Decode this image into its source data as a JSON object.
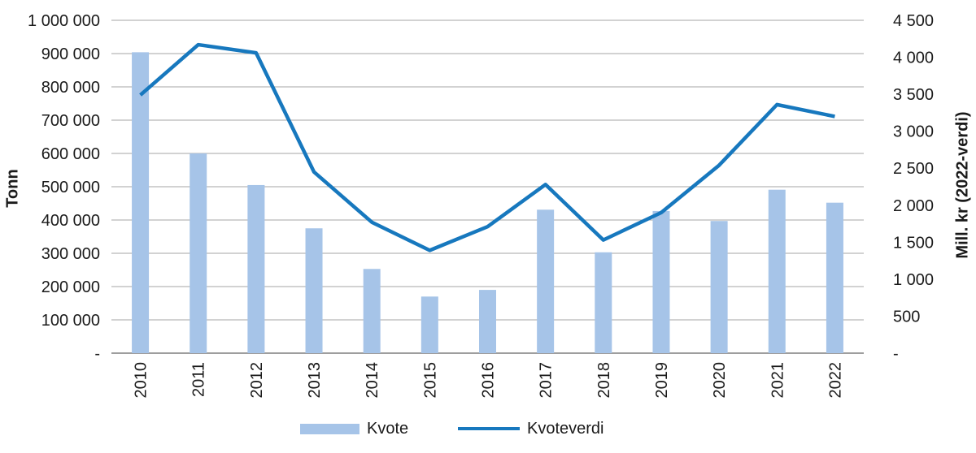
{
  "chart_data": {
    "type": "combo-bar-line",
    "title": "",
    "categories": [
      "2010",
      "2011",
      "2012",
      "2013",
      "2014",
      "2015",
      "2016",
      "2017",
      "2018",
      "2019",
      "2020",
      "2021",
      "2022"
    ],
    "series": [
      {
        "name": "Kvote",
        "type": "bar",
        "axis": "left",
        "color": "#A6C4E8",
        "values": [
          904000,
          600000,
          505000,
          375000,
          253000,
          170000,
          190000,
          431000,
          303000,
          427000,
          397000,
          491000,
          452000
        ]
      },
      {
        "name": "Kvoteverdi",
        "type": "line",
        "axis": "right",
        "color": "#1778BE",
        "values": [
          3490,
          4170,
          4060,
          2450,
          1770,
          1390,
          1710,
          2280,
          1530,
          1900,
          2540,
          3360,
          3200
        ]
      }
    ],
    "left_axis": {
      "label": "Tonn",
      "min": 0,
      "max": 1000000,
      "step": 100000,
      "tick_labels": [
        "-",
        "100 000",
        "200 000",
        "300 000",
        "400 000",
        "500 000",
        "600 000",
        "700 000",
        "800 000",
        "900 000",
        "1 000 000"
      ]
    },
    "right_axis": {
      "label": "Mill. kr (2022-verdi)",
      "min": 0,
      "max": 4500,
      "step": 500,
      "tick_labels": [
        "-",
        "500",
        "1 000",
        "1 500",
        "2 000",
        "2 500",
        "3 000",
        "3 500",
        "4 000",
        "4 500"
      ]
    },
    "grid": {
      "horizontal": true,
      "color": "#A6A6A6",
      "axis_line_color": "#7F7F7F"
    },
    "legend": {
      "position": "bottom",
      "items": [
        {
          "label": "Kvote",
          "swatch": "bar"
        },
        {
          "label": "Kvoteverdi",
          "swatch": "line"
        }
      ]
    }
  }
}
